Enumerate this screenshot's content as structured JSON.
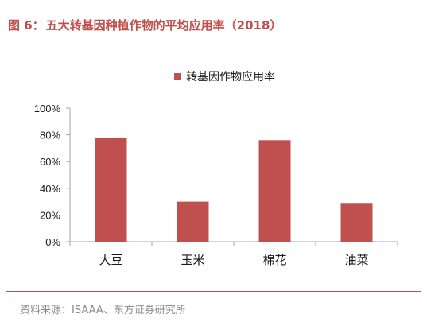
{
  "figure": {
    "number_label": "图 6：",
    "title": "五大转基因种植作物的平均应用率（2018）",
    "source": "资料来源：ISAAA、东方证券研究所"
  },
  "colors": {
    "accent": "#c0504d",
    "bar": "#c0504d",
    "axis": "#a6a6a6",
    "text": "#1a1a1a",
    "source_text": "#8a8a8a"
  },
  "chart_data": {
    "type": "bar",
    "categories": [
      "大豆",
      "玉米",
      "棉花",
      "油菜"
    ],
    "series": [
      {
        "name": "转基因作物应用率",
        "values": [
          78,
          30,
          76,
          29
        ]
      }
    ],
    "yticks": [
      "0%",
      "20%",
      "40%",
      "60%",
      "80%",
      "100%"
    ],
    "ylim": [
      0,
      100
    ],
    "y_unit": "%",
    "grid": false,
    "legend_position": "top"
  }
}
